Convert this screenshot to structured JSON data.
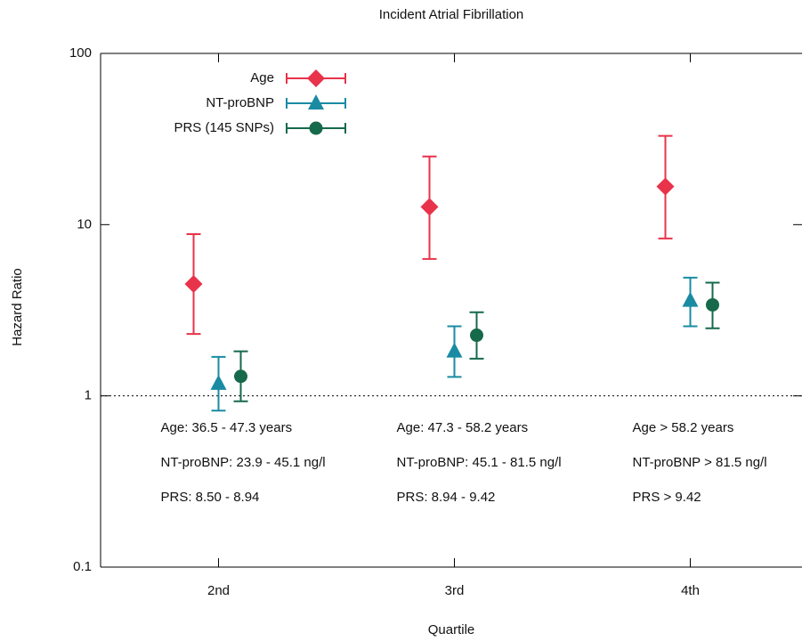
{
  "chart_data": {
    "type": "errorbar",
    "title": "Incident Atrial Fibrillation",
    "xlabel": "Quartile",
    "ylabel": "Hazard Ratio",
    "categories": [
      "2nd",
      "3rd",
      "4th"
    ],
    "log_scale": true,
    "ylim": [
      0.1,
      100
    ],
    "yticks": [
      0.1,
      1,
      10,
      100
    ],
    "reference_line": 1,
    "legend": "upper-left",
    "series": [
      {
        "name": "Age",
        "color": "#e8334a",
        "marker": "diamond",
        "values": [
          4.5,
          12.7,
          16.7
        ],
        "lower": [
          2.3,
          6.3,
          8.3
        ],
        "upper": [
          8.8,
          25,
          33
        ]
      },
      {
        "name": "NT-proBNP",
        "color": "#1a8ba3",
        "marker": "triangle",
        "values": [
          1.18,
          1.82,
          3.6
        ],
        "lower": [
          0.82,
          1.29,
          2.55
        ],
        "upper": [
          1.69,
          2.55,
          4.9
        ]
      },
      {
        "name": "PRS (145 SNPs)",
        "color": "#16694a",
        "marker": "circle",
        "values": [
          1.3,
          2.26,
          3.4
        ],
        "lower": [
          0.93,
          1.65,
          2.48
        ],
        "upper": [
          1.82,
          3.08,
          4.58
        ]
      }
    ],
    "annotations": [
      [
        "Age: 36.5 - 47.3 years",
        "NT-proBNP: 23.9 - 45.1 ng/l",
        "PRS: 8.50 - 8.94"
      ],
      [
        "Age: 47.3 - 58.2 years",
        "NT-proBNP: 45.1 - 81.5 ng/l",
        "PRS: 8.94 - 9.42"
      ],
      [
        "Age > 58.2 years",
        "NT-proBNP > 81.5 ng/l",
        "PRS > 9.42"
      ]
    ]
  }
}
